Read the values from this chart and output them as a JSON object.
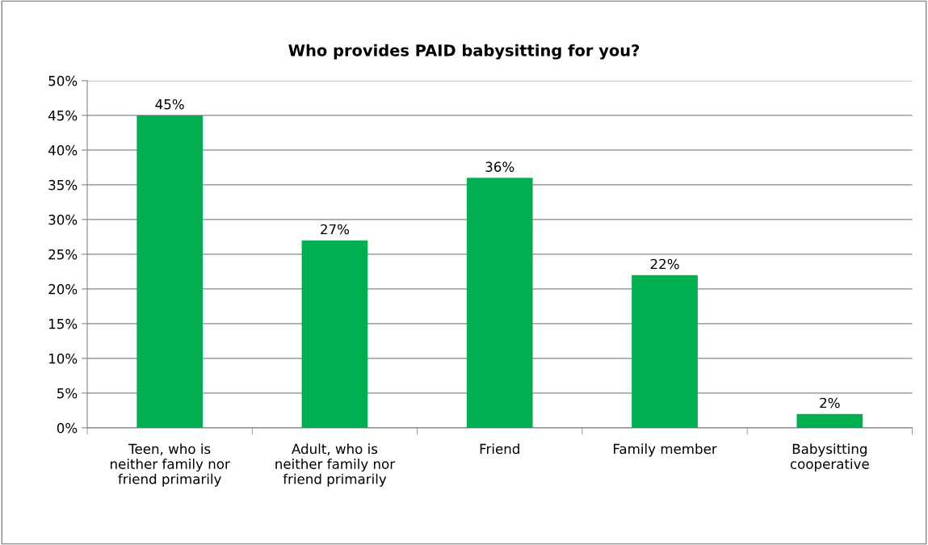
{
  "chart_data": {
    "type": "bar",
    "title": "Who provides PAID babysitting for you?",
    "categories": [
      "Teen, who is\nneither family nor\nfriend primarily",
      "Adult, who is\nneither family nor\nfriend primarily",
      "Friend",
      "Family member",
      "Babysitting\ncooperative"
    ],
    "values": [
      45,
      27,
      36,
      22,
      2
    ],
    "value_labels": [
      "45%",
      "27%",
      "36%",
      "22%",
      "2%"
    ],
    "color": "#00b050",
    "ylim": [
      0,
      50
    ],
    "yticks": [
      {
        "value": 0,
        "label": "0%"
      },
      {
        "value": 5,
        "label": "5%"
      },
      {
        "value": 10,
        "label": "10%"
      },
      {
        "value": 15,
        "label": "15%"
      },
      {
        "value": 20,
        "label": "20%"
      },
      {
        "value": 25,
        "label": "25%"
      },
      {
        "value": 30,
        "label": "30%"
      },
      {
        "value": 35,
        "label": "35%"
      },
      {
        "value": 40,
        "label": "40%"
      },
      {
        "value": 45,
        "label": "45%"
      },
      {
        "value": 50,
        "label": "50%"
      }
    ],
    "grid": "y",
    "legend": false
  }
}
